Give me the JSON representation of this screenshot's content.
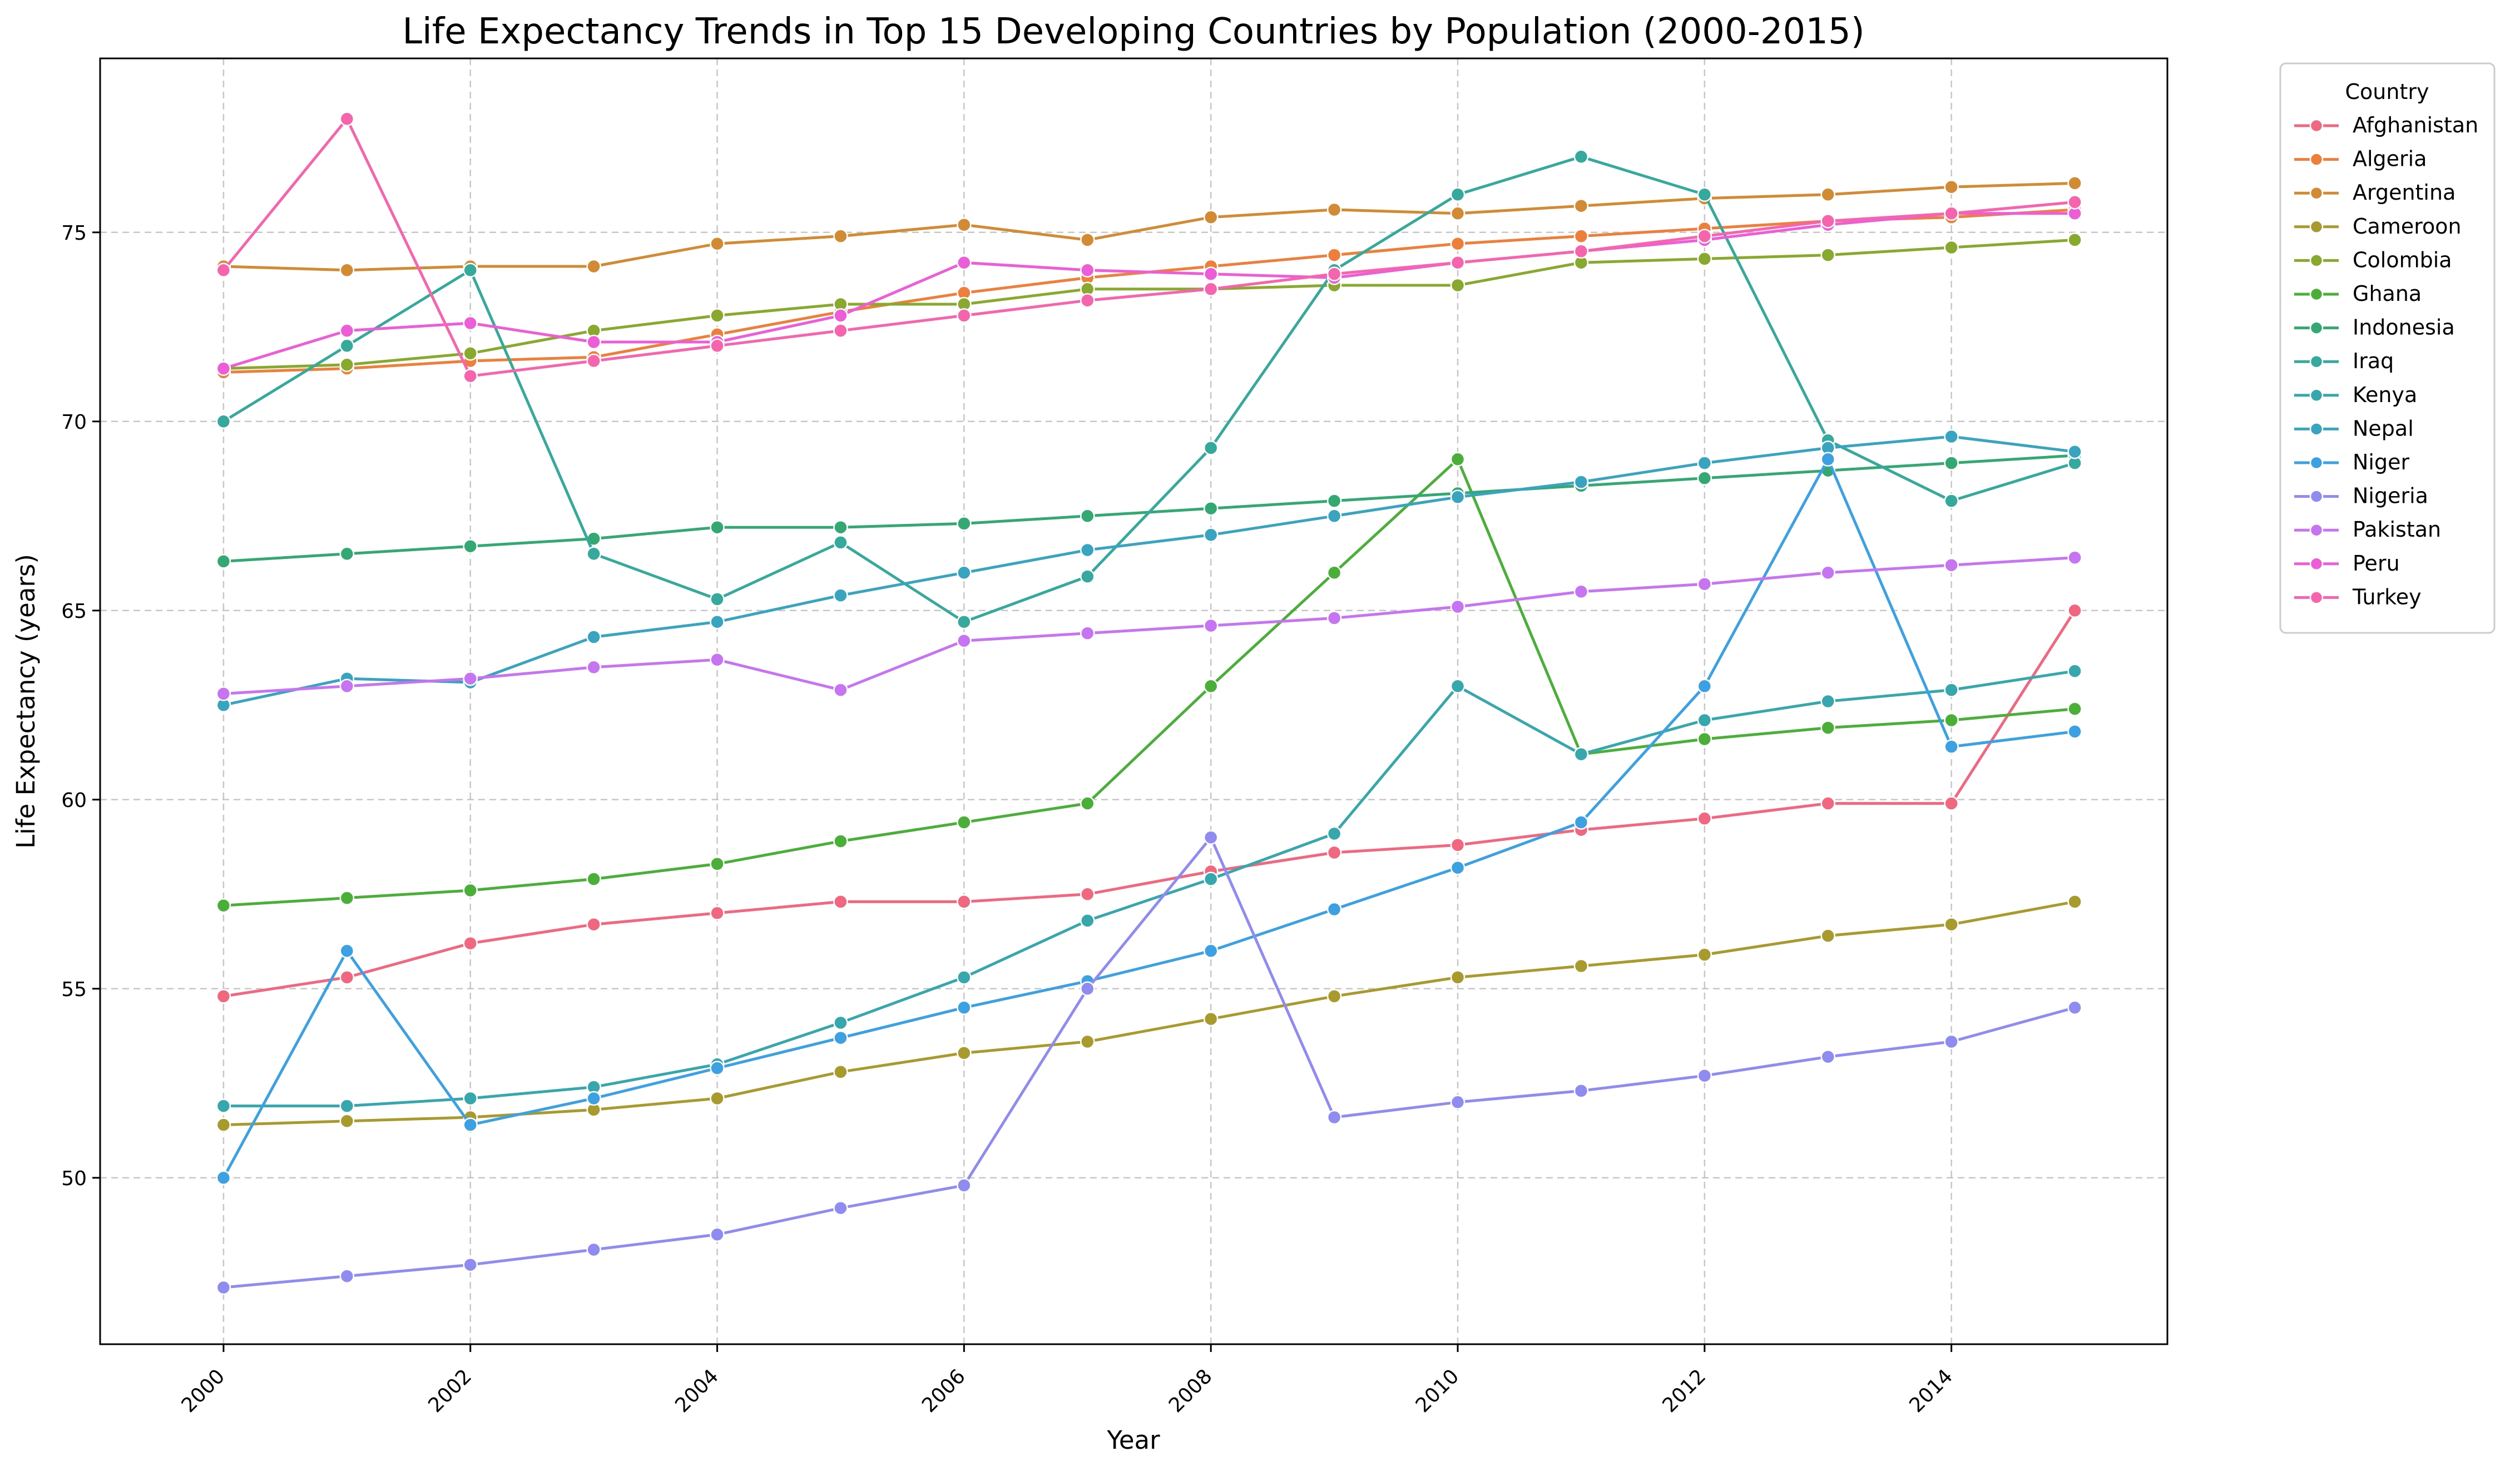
{
  "chart_data": {
    "type": "line",
    "title": "Life Expectancy Trends in Top 15 Developing Countries by Population (2000-2015)",
    "xlabel": "Year",
    "ylabel": "Life Expectancy (years)",
    "x": [
      2000,
      2001,
      2002,
      2003,
      2004,
      2005,
      2006,
      2007,
      2008,
      2009,
      2010,
      2011,
      2012,
      2013,
      2014,
      2015
    ],
    "xlim": [
      1999.0,
      2015.75
    ],
    "ylim": [
      45.6,
      79.6
    ],
    "xticks": [
      2000,
      2002,
      2004,
      2006,
      2008,
      2010,
      2012,
      2014
    ],
    "yticks": [
      50,
      55,
      60,
      65,
      70,
      75
    ],
    "xtick_rotation": 45,
    "grid": true,
    "legend": {
      "title": "Country",
      "placement": "outside-top-right"
    },
    "series": [
      {
        "name": "Afghanistan",
        "color": "#f0677f",
        "values": [
          54.8,
          55.3,
          56.2,
          56.7,
          57.0,
          57.3,
          57.3,
          57.5,
          58.1,
          58.6,
          58.8,
          59.2,
          59.5,
          59.9,
          59.9,
          65.0
        ]
      },
      {
        "name": "Algeria",
        "color": "#ee7f3b",
        "values": [
          71.3,
          71.4,
          71.6,
          71.7,
          72.3,
          72.9,
          73.4,
          73.8,
          74.1,
          74.4,
          74.7,
          74.9,
          75.1,
          75.3,
          75.4,
          75.6
        ]
      },
      {
        "name": "Argentina",
        "color": "#d28a33",
        "values": [
          74.1,
          74.0,
          74.1,
          74.1,
          74.7,
          74.9,
          75.2,
          74.8,
          75.4,
          75.6,
          75.5,
          75.7,
          75.9,
          76.0,
          76.2,
          76.3
        ]
      },
      {
        "name": "Cameroon",
        "color": "#a99a2e",
        "values": [
          51.4,
          51.5,
          51.6,
          51.8,
          52.1,
          52.8,
          53.3,
          53.6,
          54.2,
          54.8,
          55.3,
          55.6,
          55.9,
          56.4,
          56.7,
          57.3
        ]
      },
      {
        "name": "Colombia",
        "color": "#89a82e",
        "values": [
          71.4,
          71.5,
          71.8,
          72.4,
          72.8,
          73.1,
          73.1,
          73.5,
          73.5,
          73.6,
          73.6,
          74.2,
          74.3,
          74.4,
          74.6,
          74.8
        ]
      },
      {
        "name": "Ghana",
        "color": "#4aaf38",
        "values": [
          57.2,
          57.4,
          57.6,
          57.9,
          58.3,
          58.9,
          59.4,
          59.9,
          63.0,
          66.0,
          69.0,
          61.2,
          61.6,
          61.9,
          62.1,
          62.4
        ]
      },
      {
        "name": "Indonesia",
        "color": "#33a873",
        "values": [
          66.3,
          66.5,
          66.7,
          66.9,
          67.2,
          67.2,
          67.3,
          67.5,
          67.7,
          67.9,
          68.1,
          68.3,
          68.5,
          68.7,
          68.9,
          69.1
        ]
      },
      {
        "name": "Iraq",
        "color": "#35a99c",
        "values": [
          70.0,
          72.0,
          74.0,
          66.5,
          65.3,
          66.8,
          64.7,
          65.9,
          69.3,
          74.0,
          76.0,
          77.0,
          76.0,
          69.5,
          67.9,
          68.9
        ]
      },
      {
        "name": "Kenya",
        "color": "#36a7ad",
        "values": [
          51.9,
          51.9,
          52.1,
          52.4,
          53.0,
          54.1,
          55.3,
          56.8,
          57.9,
          59.1,
          63.0,
          61.2,
          62.1,
          62.6,
          62.9,
          63.4
        ]
      },
      {
        "name": "Nepal",
        "color": "#38a4c0",
        "values": [
          62.5,
          63.2,
          63.1,
          64.3,
          64.7,
          65.4,
          66.0,
          66.6,
          67.0,
          67.5,
          68.0,
          68.4,
          68.9,
          69.3,
          69.6,
          69.2
        ]
      },
      {
        "name": "Niger",
        "color": "#3ba1e2",
        "values": [
          50.0,
          56.0,
          51.4,
          52.1,
          52.9,
          53.7,
          54.5,
          55.2,
          56.0,
          57.1,
          58.2,
          59.4,
          63.0,
          69.0,
          61.4,
          61.8
        ]
      },
      {
        "name": "Nigeria",
        "color": "#8f8bf0",
        "values": [
          47.1,
          47.4,
          47.7,
          48.1,
          48.5,
          49.2,
          49.8,
          55.0,
          59.0,
          51.6,
          52.0,
          52.3,
          52.7,
          53.2,
          53.6,
          54.5
        ]
      },
      {
        "name": "Pakistan",
        "color": "#c674f2",
        "values": [
          62.8,
          63.0,
          63.2,
          63.5,
          63.7,
          62.9,
          64.2,
          64.4,
          64.6,
          64.8,
          65.1,
          65.5,
          65.7,
          66.0,
          66.2,
          66.4
        ]
      },
      {
        "name": "Peru",
        "color": "#ee5dd8",
        "values": [
          71.4,
          72.4,
          72.6,
          72.1,
          72.1,
          72.8,
          74.2,
          74.0,
          73.9,
          73.8,
          74.2,
          74.5,
          74.8,
          75.2,
          75.5,
          75.5
        ]
      },
      {
        "name": "Turkey",
        "color": "#f564ad",
        "values": [
          74.0,
          78.0,
          71.2,
          71.6,
          72.0,
          72.4,
          72.8,
          73.2,
          73.5,
          73.9,
          74.2,
          74.5,
          74.9,
          75.3,
          75.5,
          75.8
        ]
      }
    ]
  }
}
